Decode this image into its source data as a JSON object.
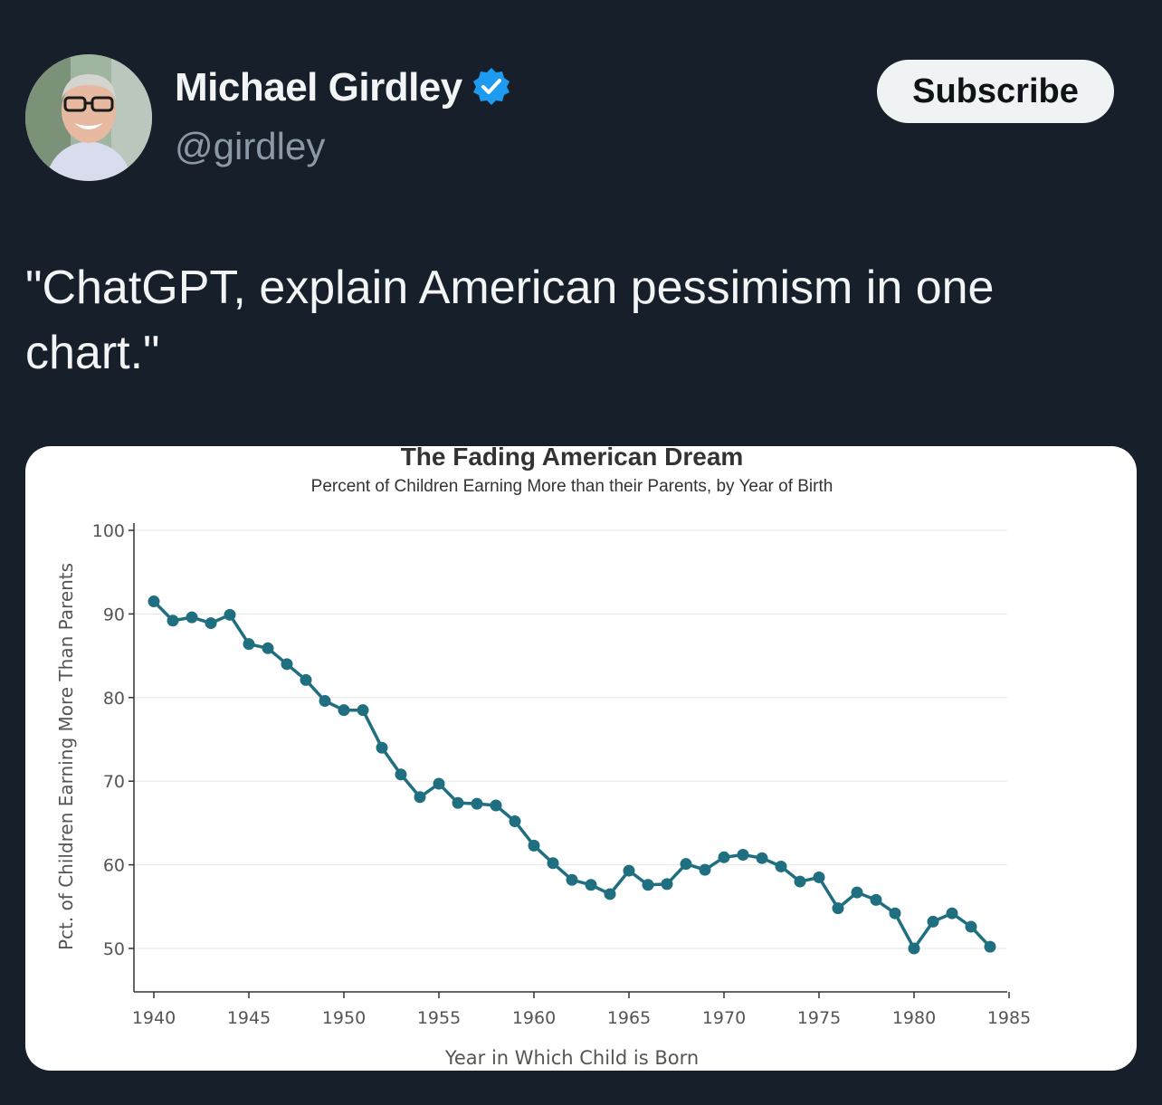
{
  "author": {
    "name": "Michael Girdley",
    "handle": "@girdley",
    "verified": true,
    "verified_icon": "verified-badge-icon",
    "verified_color": "#1d9bf0"
  },
  "subscribe_label": "Subscribe",
  "tweet_text": "\"ChatGPT, explain American pessimism in one chart.\"",
  "colors": {
    "background": "#17202a",
    "line": "#1f6f80"
  },
  "chart_data": {
    "type": "line",
    "title": "The Fading American Dream",
    "subtitle": "Percent of Children Earning More than their Parents, by Year of Birth",
    "xlabel": "Year in Which Child is Born",
    "ylabel": "Pct. of Children Earning More Than Parents",
    "xlim": [
      1939,
      1985
    ],
    "ylim": [
      45,
      100
    ],
    "xticks": [
      1940,
      1945,
      1950,
      1955,
      1960,
      1965,
      1970,
      1975,
      1980,
      1985
    ],
    "yticks": [
      50,
      60,
      70,
      80,
      90,
      100
    ],
    "grid": true,
    "x": [
      1940,
      1941,
      1942,
      1943,
      1944,
      1945,
      1946,
      1947,
      1948,
      1949,
      1950,
      1951,
      1952,
      1953,
      1954,
      1955,
      1956,
      1957,
      1958,
      1959,
      1960,
      1961,
      1962,
      1963,
      1964,
      1965,
      1966,
      1967,
      1968,
      1969,
      1970,
      1971,
      1972,
      1973,
      1974,
      1975,
      1976,
      1977,
      1978,
      1979,
      1980,
      1981,
      1982,
      1983,
      1984
    ],
    "y": [
      91.5,
      89.2,
      89.6,
      88.9,
      89.9,
      86.4,
      85.9,
      84.0,
      82.1,
      79.6,
      78.5,
      78.5,
      74.0,
      70.8,
      68.1,
      69.7,
      67.4,
      67.3,
      67.1,
      65.2,
      62.3,
      60.2,
      58.2,
      57.6,
      56.5,
      59.3,
      57.6,
      57.7,
      60.1,
      59.4,
      60.9,
      61.2,
      60.8,
      59.8,
      58.0,
      58.5,
      54.8,
      56.7,
      55.8,
      54.2,
      50.0,
      53.2,
      54.2,
      52.6,
      50.2
    ]
  }
}
